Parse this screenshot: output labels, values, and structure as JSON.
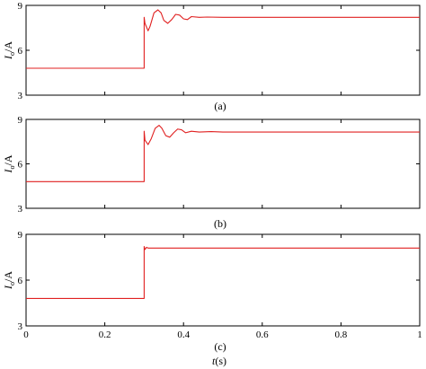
{
  "figure": {
    "xlabel_main": "t",
    "xlabel_unit": "(s)",
    "colors": {
      "trace": "#e02020",
      "axis": "#000000"
    }
  },
  "chart_data": [
    {
      "type": "line",
      "label": "(a)",
      "ylabel_main": "I",
      "ylabel_sub": "o",
      "ylabel_unit": "/A",
      "xlim": [
        0,
        1
      ],
      "ylim": [
        3,
        9
      ],
      "yticks": [
        3,
        6,
        9
      ],
      "xticks": [
        0,
        0.2,
        0.4,
        0.6,
        0.8,
        1
      ],
      "show_xticklabels": false,
      "grid": false,
      "series": [
        {
          "step_time": 0.3,
          "initial": 4.8,
          "final": 8.2,
          "spike_peak": 8.2,
          "spike_dip": 7.3,
          "x": [
            0,
            0.3,
            0.3,
            0.302,
            0.31,
            0.315,
            0.325,
            0.335,
            0.343,
            0.35,
            0.36,
            0.37,
            0.38,
            0.39,
            0.4,
            0.41,
            0.42,
            0.44,
            0.46,
            0.5,
            0.6,
            0.8,
            1
          ],
          "y": [
            4.8,
            4.8,
            8.2,
            7.8,
            7.3,
            7.6,
            8.5,
            8.7,
            8.5,
            8.0,
            7.8,
            8.05,
            8.4,
            8.35,
            8.1,
            8.05,
            8.25,
            8.2,
            8.22,
            8.2,
            8.2,
            8.2,
            8.2
          ]
        }
      ]
    },
    {
      "type": "line",
      "label": "(b)",
      "ylabel_main": "I",
      "ylabel_sub": "o",
      "ylabel_unit": "/A",
      "xlim": [
        0,
        1
      ],
      "ylim": [
        3,
        9
      ],
      "yticks": [
        3,
        6,
        9
      ],
      "xticks": [
        0,
        0.2,
        0.4,
        0.6,
        0.8,
        1
      ],
      "show_xticklabels": false,
      "grid": false,
      "series": [
        {
          "step_time": 0.3,
          "initial": 4.8,
          "final": 8.15,
          "spike_peak": 8.2,
          "spike_dip": 7.3,
          "x": [
            0,
            0.3,
            0.3,
            0.302,
            0.31,
            0.318,
            0.328,
            0.338,
            0.345,
            0.355,
            0.365,
            0.375,
            0.385,
            0.395,
            0.405,
            0.42,
            0.44,
            0.47,
            0.5,
            0.6,
            0.8,
            1
          ],
          "y": [
            4.8,
            4.8,
            8.2,
            7.6,
            7.3,
            7.7,
            8.4,
            8.6,
            8.4,
            7.9,
            7.8,
            8.1,
            8.35,
            8.3,
            8.1,
            8.2,
            8.15,
            8.18,
            8.15,
            8.15,
            8.15,
            8.15
          ]
        }
      ]
    },
    {
      "type": "line",
      "label": "(c)",
      "ylabel_main": "I",
      "ylabel_sub": "o",
      "ylabel_unit": "/A",
      "xlim": [
        0,
        1
      ],
      "ylim": [
        3,
        9
      ],
      "yticks": [
        3,
        6,
        9
      ],
      "xticks": [
        0,
        0.2,
        0.4,
        0.6,
        0.8,
        1
      ],
      "xticklabels": [
        "0",
        "0.2",
        "0.4",
        "0.6",
        "0.8",
        "1"
      ],
      "show_xticklabels": true,
      "grid": false,
      "series": [
        {
          "step_time": 0.3,
          "initial": 4.8,
          "final": 8.1,
          "x": [
            0,
            0.3,
            0.3,
            0.3,
            0.302,
            0.306,
            0.31,
            0.4,
            0.6,
            0.8,
            1
          ],
          "y": [
            4.8,
            4.8,
            8.2,
            8.2,
            8.0,
            8.15,
            8.1,
            8.1,
            8.1,
            8.1,
            8.1
          ]
        }
      ]
    }
  ]
}
